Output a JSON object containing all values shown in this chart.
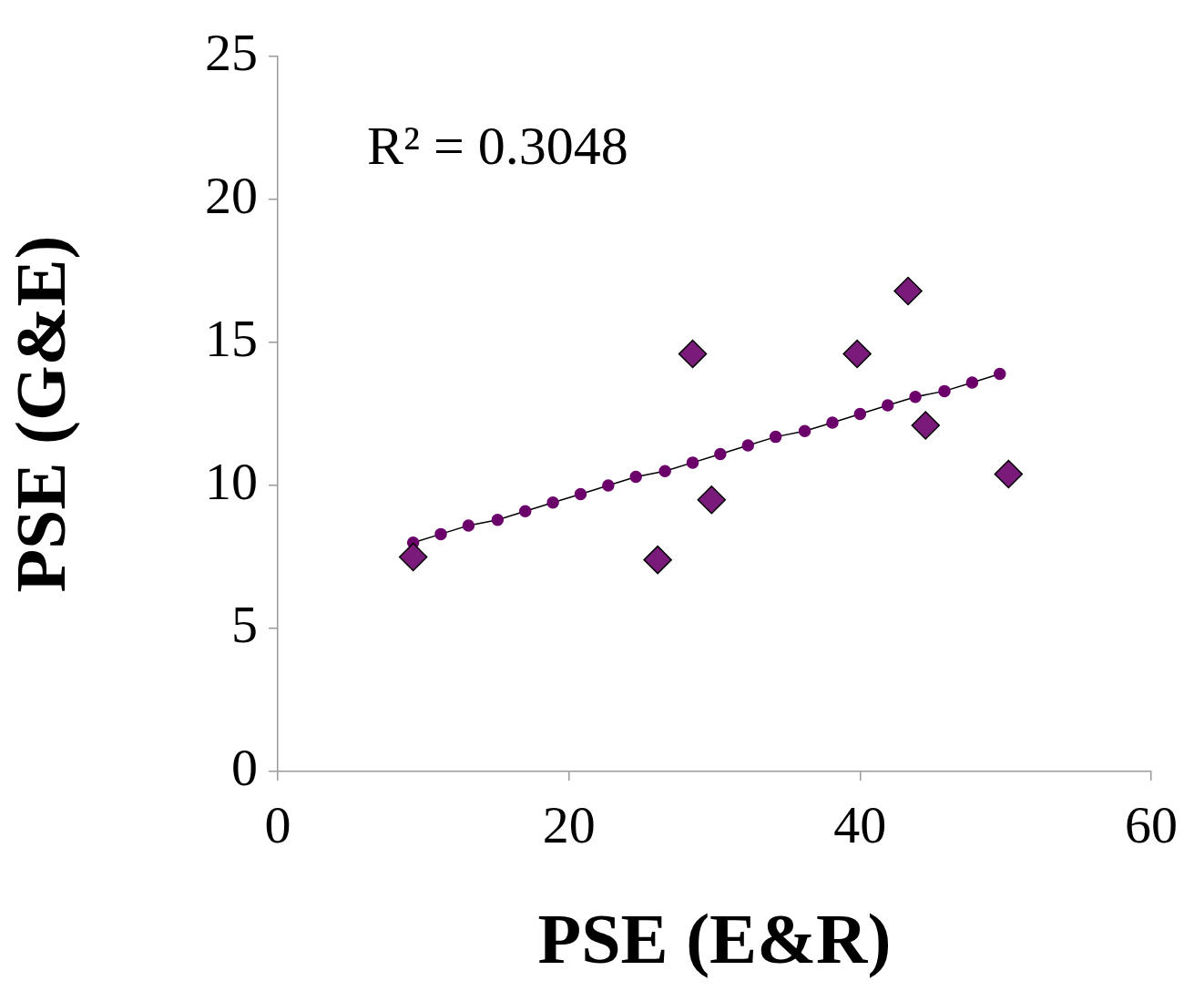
{
  "chart_data": {
    "type": "scatter",
    "xlabel": "PSE (E&R)",
    "ylabel": "PSE (G&E)",
    "xlim": [
      0,
      60
    ],
    "xticks": [
      0,
      20,
      40,
      60
    ],
    "ylim": [
      0,
      25
    ],
    "yticks": [
      0,
      5,
      10,
      15,
      20,
      25
    ],
    "annotations": [
      "R² = 0.3048"
    ],
    "series": [
      {
        "type": "scatter",
        "color": "#7a1a7a",
        "marker": "diamond",
        "x": [
          9.3,
          26.1,
          28.5,
          29.8,
          39.8,
          43.3,
          44.5,
          50.2
        ],
        "values": [
          7.5,
          7.4,
          14.6,
          9.5,
          14.6,
          16.8,
          12.1,
          10.4
        ]
      },
      {
        "type": "line",
        "color": "#6b006b",
        "marker": "circle",
        "line_style": "solid",
        "x": [
          9.3,
          11.2,
          13.1,
          15.1,
          17.0,
          18.9,
          20.8,
          22.7,
          24.6,
          26.6,
          28.5,
          30.4,
          32.3,
          34.2,
          36.2,
          38.1,
          40.0,
          41.9,
          43.8,
          45.8,
          47.7,
          49.6
        ],
        "values": [
          8.0,
          8.3,
          8.6,
          8.8,
          9.1,
          9.4,
          9.7,
          10.0,
          10.3,
          10.5,
          10.8,
          11.1,
          11.4,
          11.7,
          11.9,
          12.2,
          12.5,
          12.8,
          13.1,
          13.3,
          13.6,
          13.9
        ]
      }
    ]
  }
}
